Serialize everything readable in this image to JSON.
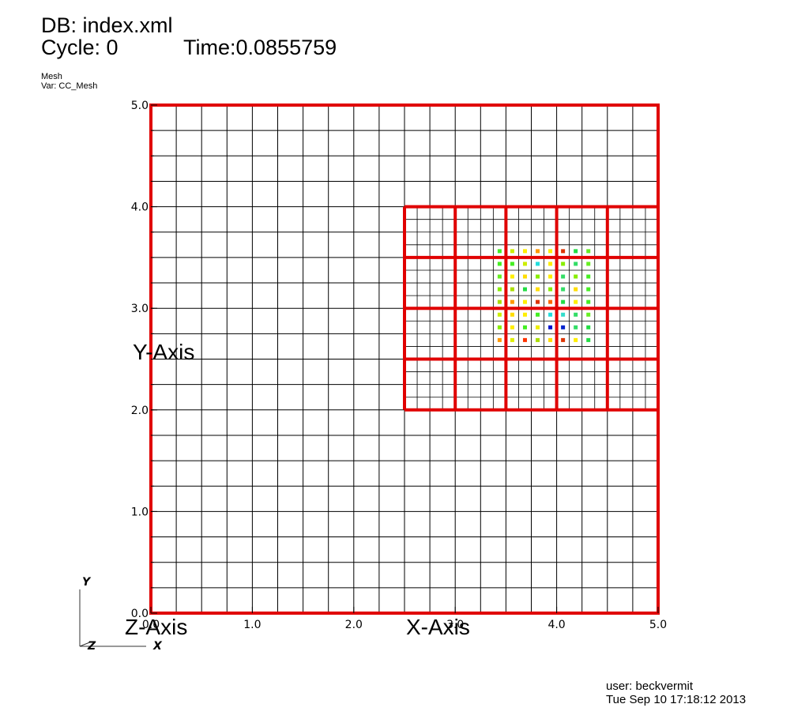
{
  "header": {
    "db_line": "DB: index.xml",
    "cycle_line": "Cycle: 0",
    "time_line": "Time:0.0855759",
    "plot_name": "Mesh",
    "var_line": "Var: CC_Mesh"
  },
  "footer": {
    "user_line": "user: beckvermit",
    "date_line": "Tue Sep 10 17:18:12 2013"
  },
  "triad": {
    "x": "X",
    "y": "Y",
    "z": "Z"
  },
  "colors": {
    "patch_outline": "#e00000",
    "fine_grid": "#000000",
    "background": "#ffffff"
  },
  "chart_data": {
    "type": "scatter",
    "xlabel": "X-Axis",
    "ylabel": "Y-Axis",
    "zlabel": "Z-Axis",
    "xlim": [
      0.0,
      5.0
    ],
    "ylim": [
      0.0,
      5.0
    ],
    "x_ticks": [
      "0.0",
      "1.0",
      "2.0",
      "3.0",
      "4.0",
      "5.0"
    ],
    "y_ticks": [
      "0.0",
      "1.0",
      "2.0",
      "3.0",
      "4.0",
      "5.0"
    ],
    "grid": true,
    "coarse_cell_size": 0.25,
    "fine_region": [
      2.5,
      5.0,
      2.0,
      4.0
    ],
    "fine_patch_size": 0.5,
    "fine_cell_size": 0.125,
    "point_spacing": 0.125,
    "point_origin": [
      3.4375,
      2.6875
    ],
    "point_colors": [
      [
        "#ff9900",
        "#ddee00",
        "#ff3300",
        "#aadd00",
        "#ffdd00",
        "#dd3300",
        "#ffee00",
        "#22dd44"
      ],
      [
        "#88ee00",
        "#ffee00",
        "#44ee22",
        "#eeee00",
        "#0011cc",
        "#0022cc",
        "#33dd66",
        "#22dd44"
      ],
      [
        "#ccee00",
        "#ffdd00",
        "#ffee00",
        "#44ee22",
        "#22dddd",
        "#33ddcc",
        "#33dd66",
        "#66ee22"
      ],
      [
        "#aadd00",
        "#ff9900",
        "#ffee00",
        "#dd3300",
        "#ff6600",
        "#22dd44",
        "#ffee00",
        "#44ee22"
      ],
      [
        "#88ee00",
        "#aadd00",
        "#22dd44",
        "#ffdd00",
        "#88ee00",
        "#33dd66",
        "#ffdd00",
        "#44ee22"
      ],
      [
        "#66ee22",
        "#ffee00",
        "#ffdd00",
        "#88ee00",
        "#ffee00",
        "#33dd66",
        "#88ee00",
        "#44ee22"
      ],
      [
        "#44ee22",
        "#44ee22",
        "#ccee00",
        "#22dddd",
        "#ffee00",
        "#88ee00",
        "#33dd66",
        "#66ee22"
      ],
      [
        "#44ee22",
        "#ccee00",
        "#ffee00",
        "#ff9900",
        "#ffee00",
        "#dd3300",
        "#22dd44",
        "#66ee22"
      ]
    ]
  }
}
